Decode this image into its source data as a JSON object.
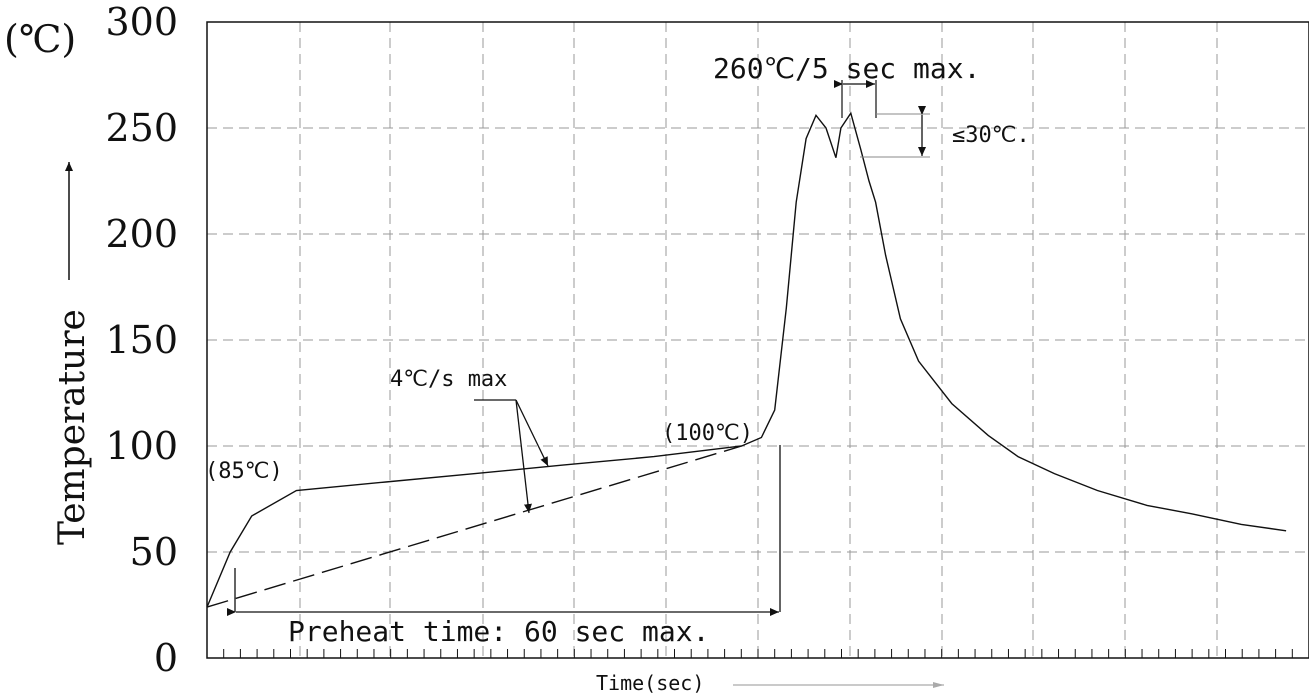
{
  "chart_data": {
    "type": "line",
    "ylabel": "Temperature",
    "y_unit": "(℃)",
    "xlabel": "Time(sec)",
    "ylim": [
      0,
      300
    ],
    "y_ticks": [
      "0",
      "50",
      "100",
      "150",
      "200",
      "250",
      "300"
    ],
    "grid": true,
    "x_tick_minor_count": 66,
    "series": [
      {
        "line_style": "solid",
        "x": [
          0,
          1.4,
          2.7,
          5.4,
          10.8,
          16.2,
          21.5,
          27,
          32.3,
          33.5,
          34.3,
          35,
          35.6,
          36.2,
          36.8,
          37.4,
          38.0,
          38.3,
          38.9,
          39.5,
          40.0,
          40.4,
          41.0,
          41.9,
          43.0,
          45.0,
          47.2,
          49.0,
          51.2,
          53.8,
          56.8,
          59.5,
          62.5,
          65.2
        ],
        "y": [
          24,
          50,
          67,
          79,
          83,
          87,
          91,
          95,
          100,
          104,
          117,
          165,
          215,
          245,
          256,
          250,
          236,
          250,
          257,
          240,
          225,
          215,
          190,
          160,
          140,
          120,
          105,
          95,
          87,
          79,
          72,
          68,
          63,
          60
        ]
      },
      {
        "line_style": "dashed",
        "x": [
          0,
          32.3
        ],
        "y": [
          24,
          100
        ]
      }
    ],
    "annotations": {
      "peak": "260℃/5 sec max.",
      "dip": "≤30℃.",
      "ramp": "4℃/s max",
      "point_100": "(100℃)",
      "point_85": "(85℃)",
      "preheat": "Preheat time: 60 sec max."
    }
  }
}
